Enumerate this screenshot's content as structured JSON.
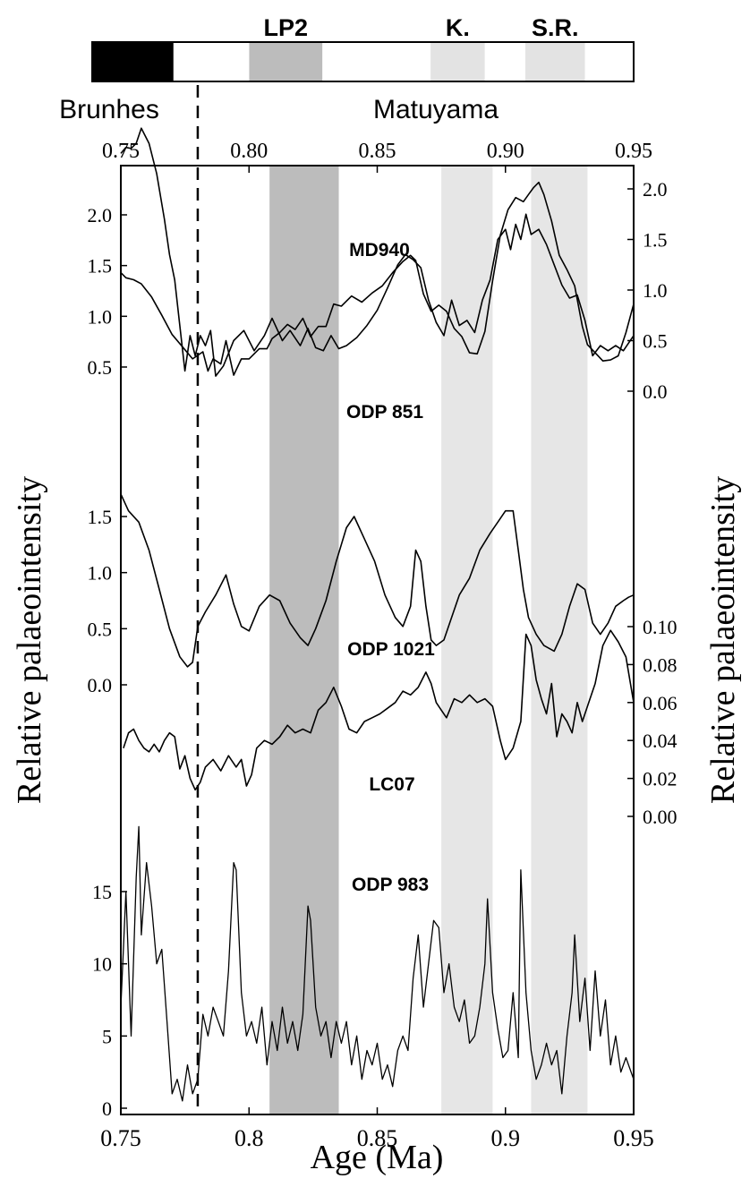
{
  "chart_data": {
    "type": "line",
    "xlabel": "Age (Ma)",
    "ylabel_left": "Relative palaeointensity",
    "ylabel_right": "Relative palaeointensity",
    "xlim": [
      0.75,
      0.95
    ],
    "x_ticks_bottom": [
      "0.75",
      "0.8",
      "0.85",
      "0.9",
      "0.95"
    ],
    "x_ticks_top": [
      "0.75",
      "0.80",
      "0.85",
      "0.90",
      "0.95"
    ],
    "polarity": {
      "chrons": [
        "Brunhes",
        "Matuyama"
      ],
      "boundary_ma": 0.78,
      "normal_bars": [
        [
          0.75,
          0.78
        ]
      ],
      "events": [
        {
          "label": "LP2",
          "range": [
            0.808,
            0.835
          ],
          "shade": "#bcbcbc"
        },
        {
          "label": "K.",
          "range": [
            0.875,
            0.895
          ],
          "shade": "#e3e3e3"
        },
        {
          "label": "S.R.",
          "range": [
            0.91,
            0.932
          ],
          "shade": "#e3e3e3"
        }
      ]
    },
    "shading": [
      {
        "range": [
          0.808,
          0.835
        ],
        "color": "#bcbcbc"
      },
      {
        "range": [
          0.875,
          0.895
        ],
        "color": "#e6e6e6"
      },
      {
        "range": [
          0.91,
          0.932
        ],
        "color": "#e6e6e6"
      }
    ],
    "axes": [
      {
        "side": "left",
        "ticks": [
          "2.0",
          "1.5",
          "1.0",
          "0.5"
        ],
        "values": [
          2.0,
          1.5,
          1.0,
          0.5
        ]
      },
      {
        "side": "right",
        "ticks": [
          "2.0",
          "1.5",
          "1.0",
          "0.5",
          "0.0"
        ],
        "values": [
          2.0,
          1.5,
          1.0,
          0.5,
          0.0
        ]
      },
      {
        "side": "left",
        "ticks": [
          "1.5",
          "1.0",
          "0.5",
          "0.0"
        ],
        "values": [
          1.5,
          1.0,
          0.5,
          0.0
        ]
      },
      {
        "side": "right",
        "ticks": [
          "0.10",
          "0.08",
          "0.06",
          "0.04",
          "0.02",
          "0.00"
        ],
        "values": [
          0.1,
          0.08,
          0.06,
          0.04,
          0.02,
          0.0
        ]
      },
      {
        "side": "left",
        "ticks": [
          "15",
          "10",
          "5",
          "0"
        ],
        "values": [
          15,
          10,
          5,
          0
        ]
      }
    ],
    "series": [
      {
        "name": "MD940",
        "axis": 0,
        "x": [
          0.75,
          0.752,
          0.755,
          0.758,
          0.762,
          0.766,
          0.77,
          0.774,
          0.778,
          0.782,
          0.784,
          0.786,
          0.789,
          0.791,
          0.794,
          0.797,
          0.8,
          0.804,
          0.807,
          0.809,
          0.812,
          0.815,
          0.818,
          0.821,
          0.824,
          0.827,
          0.83,
          0.833,
          0.836,
          0.84,
          0.844,
          0.848,
          0.852,
          0.856,
          0.86,
          0.863,
          0.865,
          0.868,
          0.871,
          0.874,
          0.877,
          0.88,
          0.883,
          0.886,
          0.889,
          0.892,
          0.895,
          0.898,
          0.901,
          0.904,
          0.907,
          0.909,
          0.911,
          0.913,
          0.915,
          0.918,
          0.921,
          0.924,
          0.927,
          0.93,
          0.932,
          0.935,
          0.938,
          0.941,
          0.944,
          0.947,
          0.95
        ],
        "values": [
          1.43,
          1.38,
          1.36,
          1.32,
          1.19,
          1.01,
          0.82,
          0.7,
          0.58,
          0.65,
          0.46,
          0.58,
          0.53,
          0.76,
          0.42,
          0.58,
          0.58,
          0.68,
          0.68,
          0.78,
          0.84,
          0.92,
          0.87,
          0.98,
          0.8,
          0.9,
          0.9,
          1.12,
          1.1,
          1.2,
          1.14,
          1.23,
          1.3,
          1.43,
          1.54,
          1.6,
          1.55,
          1.22,
          1.05,
          1.11,
          1.05,
          0.88,
          0.8,
          0.64,
          0.63,
          0.85,
          1.35,
          1.8,
          2.05,
          2.17,
          2.13,
          2.2,
          2.27,
          2.32,
          2.2,
          1.94,
          1.6,
          1.46,
          1.3,
          0.9,
          0.72,
          0.64,
          0.56,
          0.57,
          0.61,
          0.84,
          1.12
        ]
      },
      {
        "name": "ODP 851",
        "axis": 1,
        "x": [
          0.75,
          0.752,
          0.754,
          0.756,
          0.758,
          0.761,
          0.764,
          0.767,
          0.769,
          0.771,
          0.773,
          0.775,
          0.777,
          0.779,
          0.781,
          0.783,
          0.785,
          0.787,
          0.79,
          0.794,
          0.798,
          0.802,
          0.806,
          0.809,
          0.813,
          0.816,
          0.82,
          0.823,
          0.826,
          0.829,
          0.832,
          0.835,
          0.838,
          0.842,
          0.846,
          0.85,
          0.854,
          0.858,
          0.861,
          0.864,
          0.867,
          0.87,
          0.873,
          0.876,
          0.879,
          0.882,
          0.885,
          0.888,
          0.891,
          0.894,
          0.897,
          0.9,
          0.902,
          0.904,
          0.906,
          0.908,
          0.91,
          0.913,
          0.916,
          0.919,
          0.922,
          0.925,
          0.928,
          0.931,
          0.934,
          0.937,
          0.94,
          0.943,
          0.946,
          0.95
        ],
        "values": [
          2.35,
          2.41,
          2.4,
          2.45,
          2.6,
          2.45,
          2.15,
          1.7,
          1.35,
          1.1,
          0.65,
          0.2,
          0.55,
          0.35,
          0.55,
          0.45,
          0.6,
          0.15,
          0.25,
          0.5,
          0.6,
          0.4,
          0.55,
          0.72,
          0.5,
          0.6,
          0.45,
          0.62,
          0.43,
          0.4,
          0.55,
          0.42,
          0.45,
          0.53,
          0.65,
          0.8,
          1.02,
          1.25,
          1.35,
          1.3,
          1.22,
          0.9,
          0.68,
          0.55,
          0.9,
          0.65,
          0.7,
          0.58,
          0.9,
          1.1,
          1.5,
          1.6,
          1.4,
          1.65,
          1.5,
          1.75,
          1.55,
          1.6,
          1.45,
          1.25,
          1.05,
          0.92,
          0.95,
          0.7,
          0.35,
          0.45,
          0.4,
          0.45,
          0.4,
          0.55
        ]
      },
      {
        "name": "ODP 1021",
        "axis": 2,
        "x": [
          0.75,
          0.753,
          0.757,
          0.761,
          0.765,
          0.769,
          0.773,
          0.776,
          0.778,
          0.78,
          0.783,
          0.787,
          0.791,
          0.794,
          0.797,
          0.8,
          0.804,
          0.808,
          0.812,
          0.816,
          0.82,
          0.823,
          0.826,
          0.83,
          0.834,
          0.838,
          0.841,
          0.845,
          0.849,
          0.853,
          0.857,
          0.86,
          0.863,
          0.865,
          0.867,
          0.869,
          0.871,
          0.873,
          0.876,
          0.879,
          0.882,
          0.886,
          0.89,
          0.894,
          0.897,
          0.9,
          0.903,
          0.905,
          0.907,
          0.909,
          0.912,
          0.915,
          0.919,
          0.922,
          0.925,
          0.928,
          0.931,
          0.934,
          0.937,
          0.94,
          0.943,
          0.946,
          0.948,
          0.95
        ],
        "values": [
          1.7,
          1.55,
          1.45,
          1.2,
          0.85,
          0.5,
          0.25,
          0.16,
          0.2,
          0.52,
          0.65,
          0.8,
          0.98,
          0.72,
          0.52,
          0.48,
          0.7,
          0.8,
          0.75,
          0.55,
          0.42,
          0.35,
          0.5,
          0.75,
          1.1,
          1.4,
          1.5,
          1.3,
          1.1,
          0.8,
          0.6,
          0.52,
          0.7,
          1.2,
          1.1,
          0.7,
          0.4,
          0.35,
          0.4,
          0.6,
          0.8,
          0.95,
          1.2,
          1.35,
          1.45,
          1.55,
          1.55,
          1.2,
          0.85,
          0.6,
          0.45,
          0.35,
          0.3,
          0.45,
          0.7,
          0.9,
          0.85,
          0.55,
          0.45,
          0.55,
          0.7,
          0.75,
          0.78,
          0.8
        ]
      },
      {
        "name": "LC07",
        "axis": 3,
        "x": [
          0.751,
          0.753,
          0.755,
          0.757,
          0.759,
          0.761,
          0.763,
          0.765,
          0.767,
          0.769,
          0.771,
          0.773,
          0.775,
          0.777,
          0.779,
          0.781,
          0.783,
          0.786,
          0.789,
          0.792,
          0.795,
          0.797,
          0.799,
          0.801,
          0.803,
          0.806,
          0.809,
          0.812,
          0.815,
          0.818,
          0.821,
          0.824,
          0.827,
          0.83,
          0.833,
          0.836,
          0.839,
          0.842,
          0.845,
          0.848,
          0.851,
          0.854,
          0.857,
          0.86,
          0.863,
          0.866,
          0.869,
          0.871,
          0.873,
          0.875,
          0.877,
          0.88,
          0.883,
          0.886,
          0.889,
          0.892,
          0.895,
          0.898,
          0.9,
          0.903,
          0.906,
          0.908,
          0.91,
          0.912,
          0.914,
          0.916,
          0.918,
          0.92,
          0.922,
          0.924,
          0.926,
          0.928,
          0.93,
          0.932,
          0.935,
          0.938,
          0.941,
          0.944,
          0.947,
          0.95
        ],
        "values": [
          0.036,
          0.044,
          0.046,
          0.04,
          0.036,
          0.034,
          0.038,
          0.034,
          0.04,
          0.044,
          0.042,
          0.025,
          0.032,
          0.02,
          0.014,
          0.018,
          0.026,
          0.03,
          0.024,
          0.032,
          0.026,
          0.03,
          0.016,
          0.022,
          0.036,
          0.04,
          0.038,
          0.042,
          0.048,
          0.044,
          0.046,
          0.044,
          0.056,
          0.06,
          0.068,
          0.058,
          0.046,
          0.044,
          0.05,
          0.052,
          0.054,
          0.057,
          0.06,
          0.066,
          0.064,
          0.068,
          0.076,
          0.07,
          0.06,
          0.056,
          0.052,
          0.062,
          0.06,
          0.064,
          0.06,
          0.062,
          0.058,
          0.04,
          0.03,
          0.036,
          0.05,
          0.096,
          0.09,
          0.072,
          0.062,
          0.054,
          0.07,
          0.042,
          0.054,
          0.05,
          0.044,
          0.06,
          0.05,
          0.058,
          0.07,
          0.09,
          0.098,
          0.092,
          0.084,
          0.06
        ]
      },
      {
        "name": "ODP 983",
        "axis": 4,
        "x": [
          0.75,
          0.752,
          0.754,
          0.756,
          0.757,
          0.758,
          0.76,
          0.762,
          0.764,
          0.766,
          0.768,
          0.77,
          0.772,
          0.774,
          0.776,
          0.778,
          0.78,
          0.782,
          0.784,
          0.786,
          0.788,
          0.79,
          0.792,
          0.794,
          0.795,
          0.797,
          0.799,
          0.801,
          0.803,
          0.805,
          0.807,
          0.809,
          0.811,
          0.813,
          0.815,
          0.817,
          0.819,
          0.821,
          0.823,
          0.824,
          0.826,
          0.828,
          0.83,
          0.832,
          0.834,
          0.836,
          0.838,
          0.84,
          0.842,
          0.844,
          0.846,
          0.848,
          0.85,
          0.852,
          0.854,
          0.856,
          0.858,
          0.86,
          0.862,
          0.864,
          0.866,
          0.868,
          0.87,
          0.872,
          0.874,
          0.876,
          0.878,
          0.88,
          0.882,
          0.884,
          0.886,
          0.888,
          0.89,
          0.892,
          0.893,
          0.895,
          0.897,
          0.899,
          0.901,
          0.903,
          0.905,
          0.906,
          0.908,
          0.91,
          0.912,
          0.914,
          0.916,
          0.918,
          0.92,
          0.922,
          0.924,
          0.926,
          0.927,
          0.929,
          0.931,
          0.933,
          0.935,
          0.937,
          0.939,
          0.941,
          0.943,
          0.945,
          0.947,
          0.95
        ],
        "values": [
          7.0,
          15.0,
          5.0,
          16.0,
          19.5,
          12.0,
          17.0,
          14.0,
          10.0,
          11.0,
          6.0,
          1.0,
          2.0,
          0.5,
          3.0,
          1.0,
          2.0,
          6.5,
          5.0,
          7.0,
          6.0,
          5.0,
          9.5,
          17.0,
          16.5,
          8.0,
          5.0,
          6.0,
          4.5,
          7.0,
          3.0,
          6.0,
          4.0,
          7.0,
          4.5,
          6.0,
          4.0,
          6.5,
          14.0,
          13.0,
          7.0,
          5.0,
          6.0,
          3.5,
          6.0,
          4.5,
          6.0,
          3.0,
          5.0,
          2.0,
          4.0,
          3.0,
          4.5,
          2.0,
          3.0,
          1.5,
          4.0,
          5.0,
          4.0,
          9.0,
          12.0,
          7.0,
          10.0,
          13.0,
          12.5,
          8.0,
          10.0,
          7.0,
          6.0,
          7.5,
          4.5,
          5.0,
          7.0,
          10.0,
          14.5,
          8.0,
          5.5,
          3.5,
          4.0,
          8.0,
          3.5,
          16.5,
          8.0,
          4.0,
          2.0,
          3.0,
          4.5,
          3.0,
          4.0,
          1.0,
          5.0,
          8.0,
          12.0,
          6.0,
          9.0,
          4.0,
          9.5,
          5.0,
          7.5,
          3.0,
          5.0,
          2.5,
          3.5,
          2.0
        ]
      }
    ]
  }
}
